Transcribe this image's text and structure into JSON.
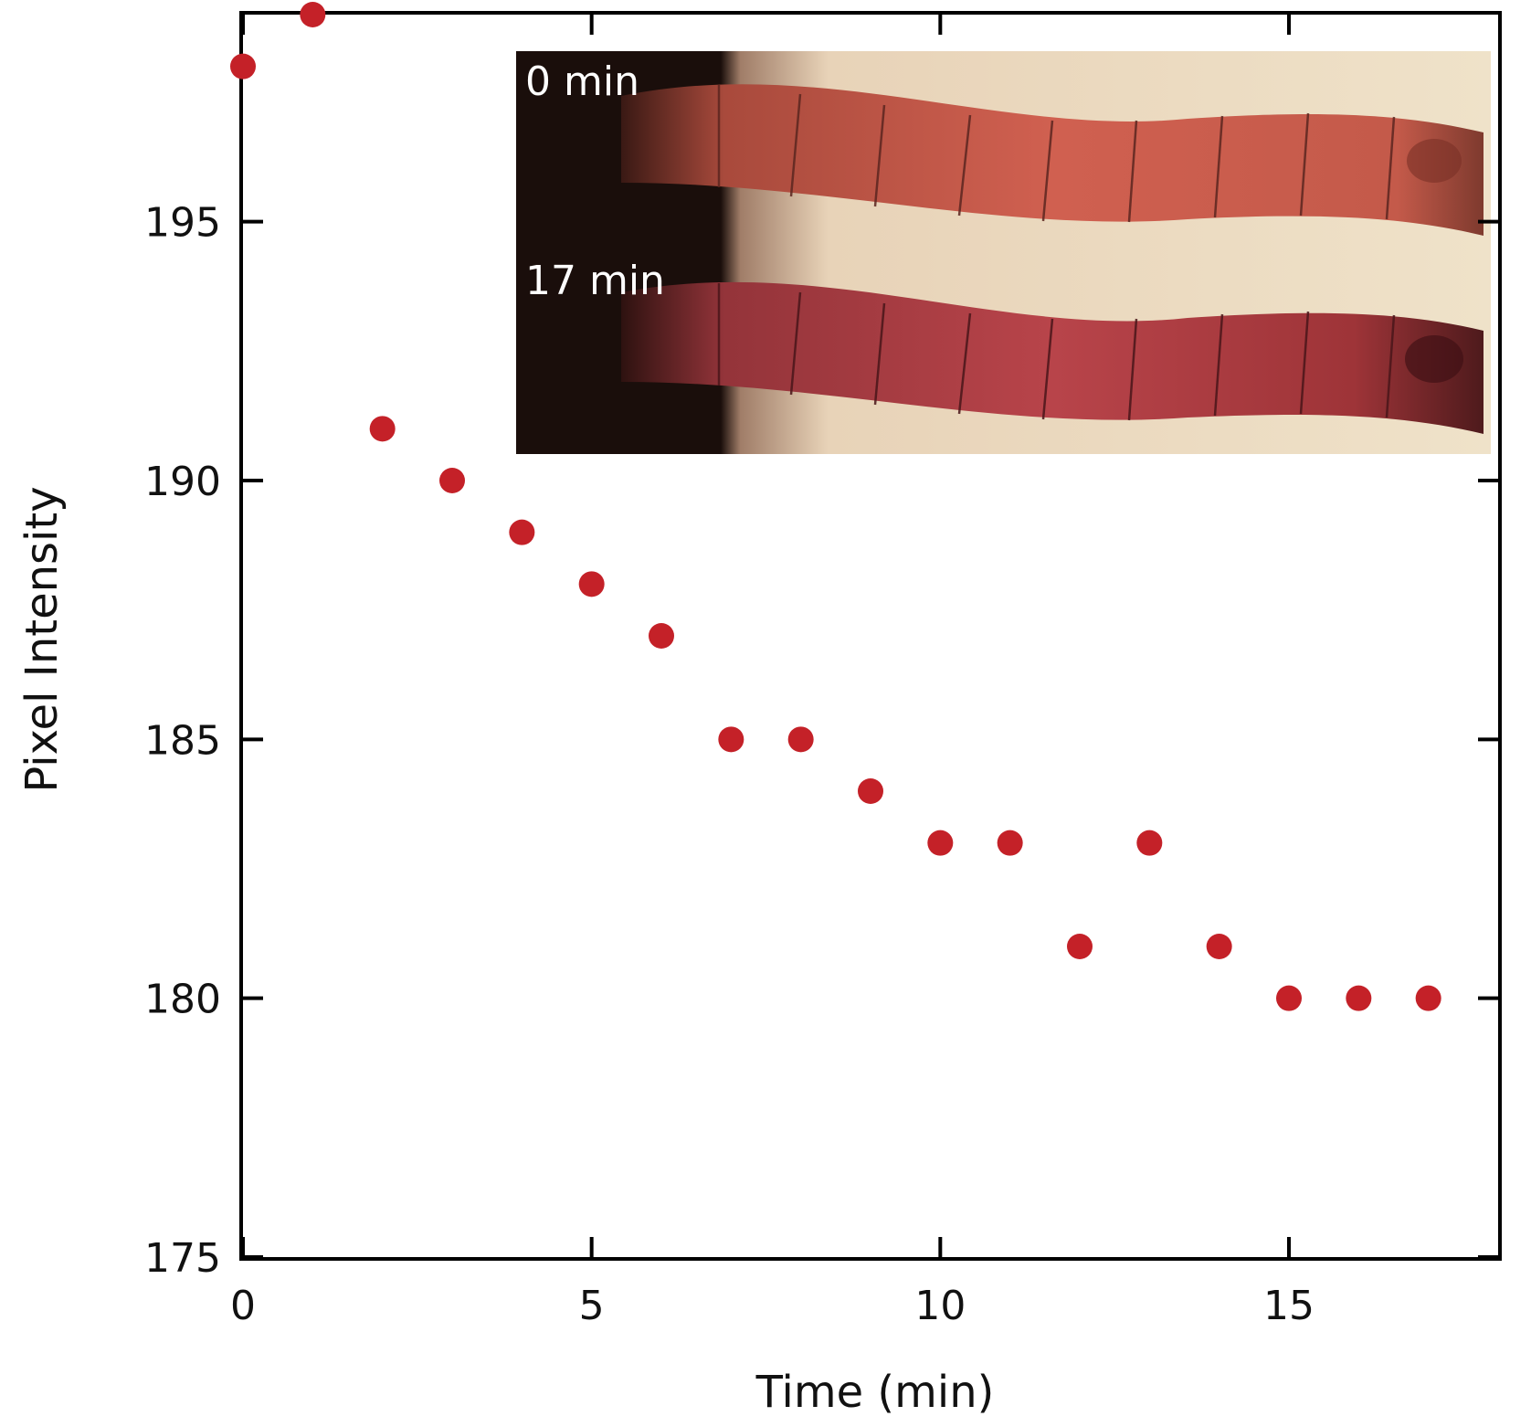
{
  "chart_data": {
    "type": "scatter",
    "xlabel": "Time (min)",
    "ylabel": "Pixel Intensity",
    "xlim": [
      0,
      18
    ],
    "ylim": [
      175,
      199
    ],
    "xticks": [
      0,
      5,
      10,
      15
    ],
    "yticks": [
      175,
      180,
      185,
      190,
      195
    ],
    "marker_color": "#c42128",
    "series": [
      {
        "x": [
          0,
          1,
          2,
          3,
          4,
          5,
          6,
          7,
          8,
          9,
          10,
          11,
          12,
          13,
          14,
          15,
          16,
          17
        ],
        "y": [
          198,
          199,
          191,
          190,
          189,
          188,
          187,
          185,
          185,
          184,
          183,
          183,
          181,
          183,
          181,
          180,
          180,
          180
        ]
      }
    ],
    "inset": {
      "panels": [
        {
          "label": "0 min"
        },
        {
          "label": "17 min"
        }
      ]
    }
  }
}
